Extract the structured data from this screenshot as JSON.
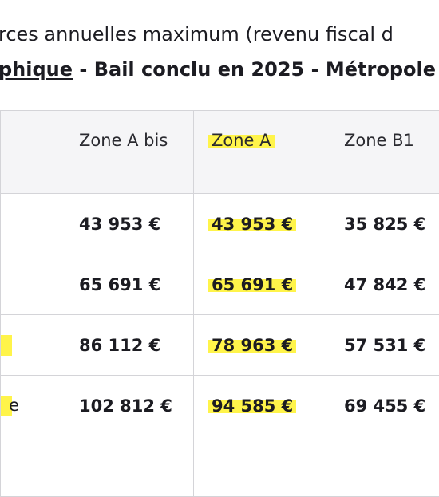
{
  "caption": {
    "line1": "rces annuelles maximum (revenu fiscal d",
    "line2_underlined": "phique",
    "line2_rest": " - Bail conclu en 2025 - Métropole"
  },
  "table": {
    "headers": [
      "/",
      "Zone A bis",
      "Zone A",
      "Zone B1"
    ],
    "highlighted_column": 2,
    "rows": [
      {
        "label": "",
        "values": [
          "43 953 €",
          "43 953 €",
          "35 825 €"
        ]
      },
      {
        "label": "",
        "values": [
          "65 691 €",
          "65 691 €",
          "47 842 €"
        ]
      },
      {
        "label": "",
        "values": [
          "86 112 €",
          "78 963 €",
          "57 531 €"
        ]
      },
      {
        "label": "e",
        "values": [
          "102 812 €",
          "94 585 €",
          "69 455 €"
        ]
      }
    ]
  },
  "colors": {
    "highlight": "#fff44a",
    "border": "#d4d4d8",
    "header_bg": "#f5f5f7"
  }
}
